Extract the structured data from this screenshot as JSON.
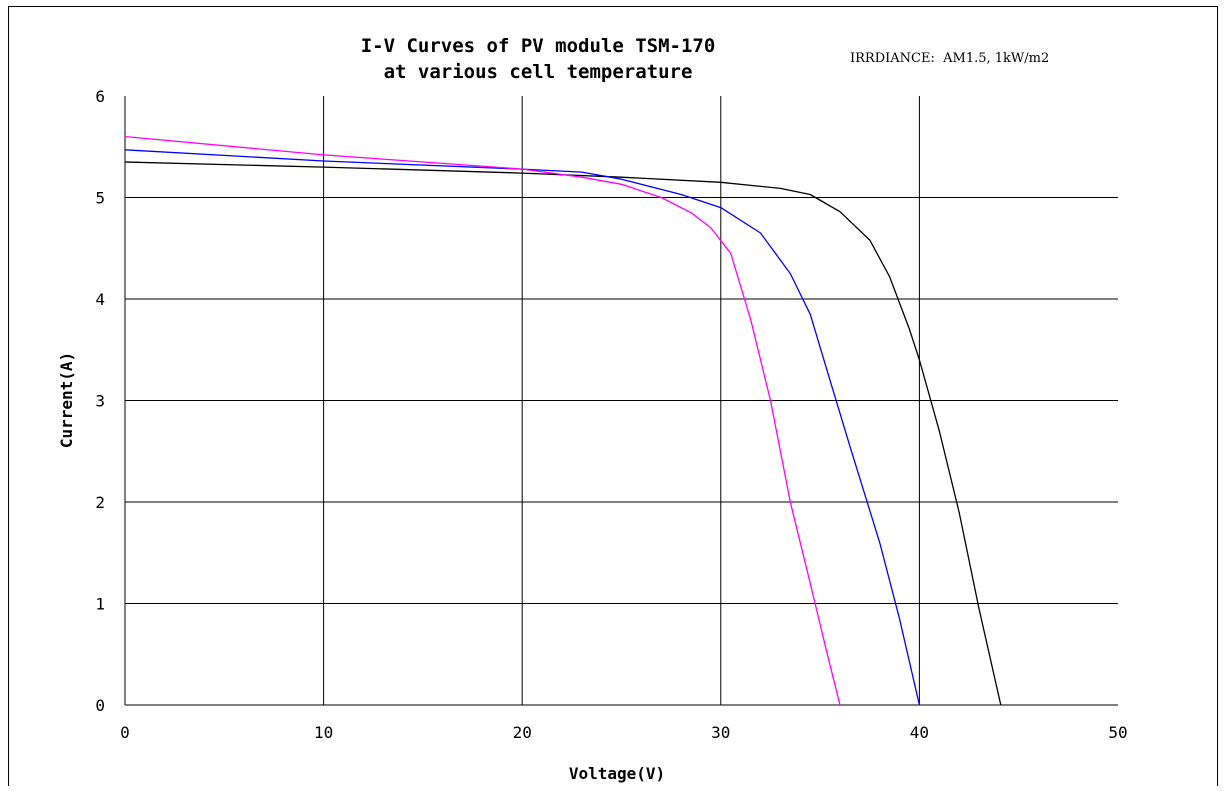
{
  "chart_data": {
    "type": "line",
    "title": "I-V Curves of PV module TSM-170",
    "subtitle": "at various cell temperature",
    "annotation": "IRRDIANCE:  AM1.5, 1kW/m2",
    "xlabel": "Voltage(V)",
    "ylabel": "Current(A)",
    "xlim": [
      0,
      50
    ],
    "ylim": [
      0,
      6
    ],
    "xticks": [
      0,
      10,
      20,
      30,
      40,
      50
    ],
    "yticks": [
      0,
      1,
      2,
      3,
      4,
      5,
      6
    ],
    "grid": true,
    "series": [
      {
        "color": "#000000",
        "x": [
          0,
          10,
          20,
          25,
          30,
          33,
          34.5,
          36,
          37.5,
          38.5,
          39.5,
          40,
          41,
          42,
          43,
          44.1
        ],
        "y": [
          5.35,
          5.3,
          5.24,
          5.2,
          5.15,
          5.09,
          5.03,
          4.86,
          4.58,
          4.22,
          3.7,
          3.4,
          2.7,
          1.9,
          0.95,
          0
        ]
      },
      {
        "color": "#0000ff",
        "x": [
          0,
          10,
          20,
          23,
          25,
          28,
          30,
          32,
          33.5,
          34.5,
          35.5,
          36.5,
          38,
          39,
          40
        ],
        "y": [
          5.47,
          5.36,
          5.28,
          5.25,
          5.18,
          5.03,
          4.9,
          4.65,
          4.25,
          3.85,
          3.2,
          2.55,
          1.6,
          0.85,
          0
        ]
      },
      {
        "color": "#ff00ff",
        "x": [
          0,
          10,
          20,
          23,
          25,
          27,
          28.5,
          29.5,
          30.5,
          31.5,
          32.5,
          33.5,
          34.5,
          35.3,
          36
        ],
        "y": [
          5.6,
          5.42,
          5.28,
          5.2,
          5.13,
          5.0,
          4.85,
          4.7,
          4.45,
          3.8,
          3.0,
          2.0,
          1.2,
          0.55,
          0
        ]
      }
    ]
  }
}
